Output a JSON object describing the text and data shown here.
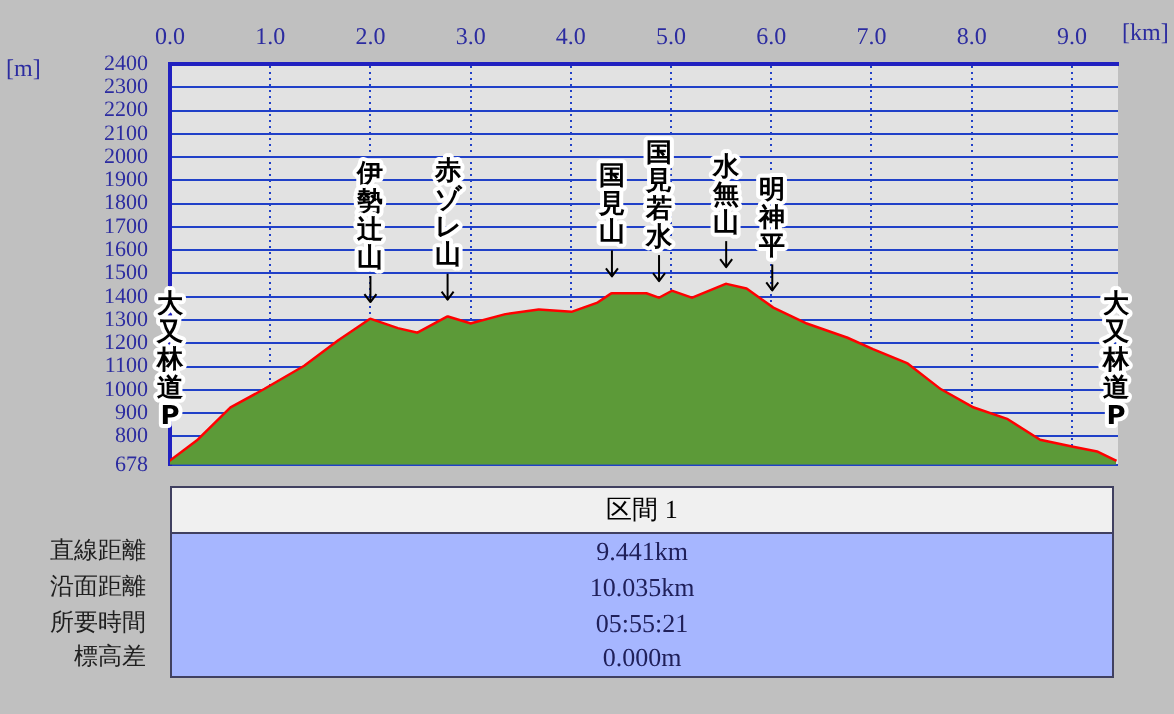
{
  "chart_data": {
    "type": "area",
    "xlabel": "[km]",
    "ylabel": "[m]",
    "x": [
      0,
      0.28,
      0.61,
      0.95,
      1.35,
      1.69,
      2.0,
      2.27,
      2.47,
      2.77,
      3.0,
      3.35,
      3.68,
      4.01,
      4.27,
      4.41,
      4.75,
      4.88,
      5.01,
      5.21,
      5.55,
      5.75,
      6.01,
      6.35,
      6.75,
      7.01,
      7.35,
      7.68,
      8.01,
      8.35,
      8.68,
      9.01,
      9.25,
      9.44
    ],
    "series": [
      {
        "type": "area",
        "color": "#5c9a38",
        "values": [
          690,
          780,
          920,
          1000,
          1100,
          1210,
          1300,
          1260,
          1240,
          1310,
          1280,
          1320,
          1340,
          1330,
          1370,
          1410,
          1410,
          1390,
          1420,
          1390,
          1450,
          1430,
          1350,
          1280,
          1220,
          1170,
          1110,
          1000,
          920,
          870,
          780,
          750,
          730,
          690
        ]
      },
      {
        "type": "line",
        "color": "#ff0000",
        "values": [
          690,
          780,
          920,
          1000,
          1100,
          1210,
          1300,
          1260,
          1240,
          1310,
          1280,
          1320,
          1340,
          1330,
          1370,
          1410,
          1410,
          1390,
          1420,
          1390,
          1450,
          1430,
          1350,
          1280,
          1220,
          1170,
          1110,
          1000,
          920,
          870,
          780,
          750,
          730,
          690
        ]
      }
    ],
    "xlim": [
      0,
      9.46
    ],
    "xticks": [
      {
        "value": 0,
        "label": "0.0"
      },
      {
        "value": 1,
        "label": "1.0"
      },
      {
        "value": 2,
        "label": "2.0"
      },
      {
        "value": 3,
        "label": "3.0"
      },
      {
        "value": 4,
        "label": "4.0"
      },
      {
        "value": 5,
        "label": "5.0"
      },
      {
        "value": 6,
        "label": "6.0"
      },
      {
        "value": 7,
        "label": "7.0"
      },
      {
        "value": 8,
        "label": "8.0"
      },
      {
        "value": 9,
        "label": "9.0"
      }
    ],
    "ylim": [
      678,
      2400
    ],
    "yticks": [
      678,
      800,
      900,
      1000,
      1100,
      1200,
      1300,
      1400,
      1500,
      1600,
      1700,
      1800,
      1900,
      2000,
      2100,
      2200,
      2300,
      2400
    ],
    "grid": true,
    "annotations": [
      {
        "text": "大又林道P",
        "x": 0,
        "y": 690
      },
      {
        "text": "伊勢辻山",
        "x": 2.0,
        "y": 1300
      },
      {
        "text": "赤ゾレ山",
        "x": 2.77,
        "y": 1310
      },
      {
        "text": "国見山",
        "x": 4.41,
        "y": 1410
      },
      {
        "text": "国見若水",
        "x": 4.88,
        "y": 1390
      },
      {
        "text": "水無山",
        "x": 5.55,
        "y": 1450
      },
      {
        "text": "明神平",
        "x": 6.01,
        "y": 1350
      },
      {
        "text": "大又林道P",
        "x": 9.44,
        "y": 690
      },
      "区間 1",
      "直線距離",
      "9.441km",
      "沿面距離",
      "10.035km",
      "所要時間",
      "05:55:21",
      "標高差",
      "0.000m"
    ]
  }
}
